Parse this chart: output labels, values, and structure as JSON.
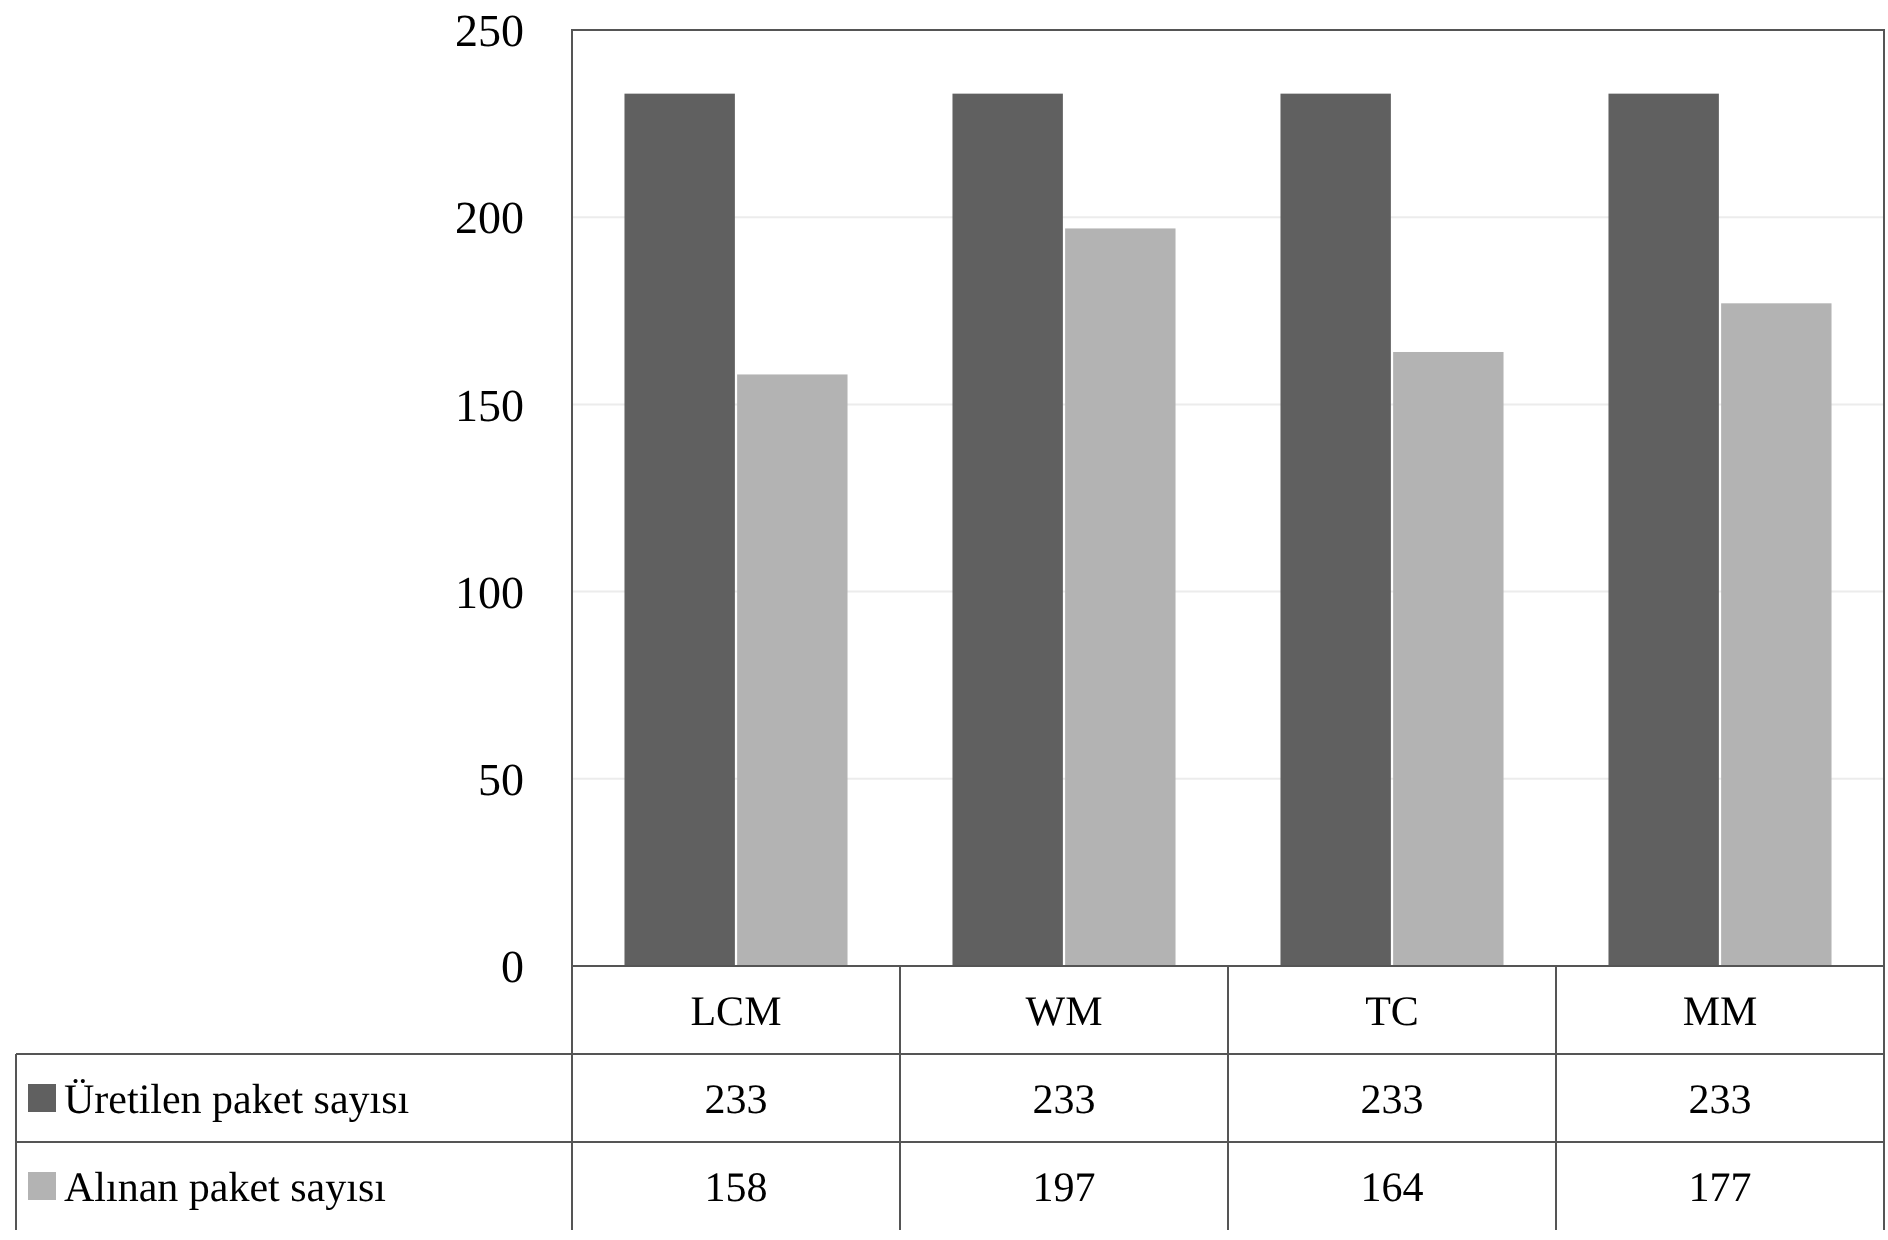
{
  "chart_data": {
    "type": "bar",
    "categories": [
      "LCM",
      "WM",
      "TC",
      "MM"
    ],
    "series": [
      {
        "name": "Üretilen paket sayısı",
        "color": "#606060",
        "values": [
          233,
          233,
          233,
          233
        ]
      },
      {
        "name": "Alınan paket sayısı",
        "color": "#b3b3b3",
        "values": [
          158,
          197,
          164,
          177
        ]
      }
    ],
    "ylim": [
      0,
      250
    ],
    "yticks": [
      0,
      50,
      100,
      150,
      200,
      250
    ],
    "grid": "y",
    "legend": "bottom",
    "data_labels": true
  }
}
